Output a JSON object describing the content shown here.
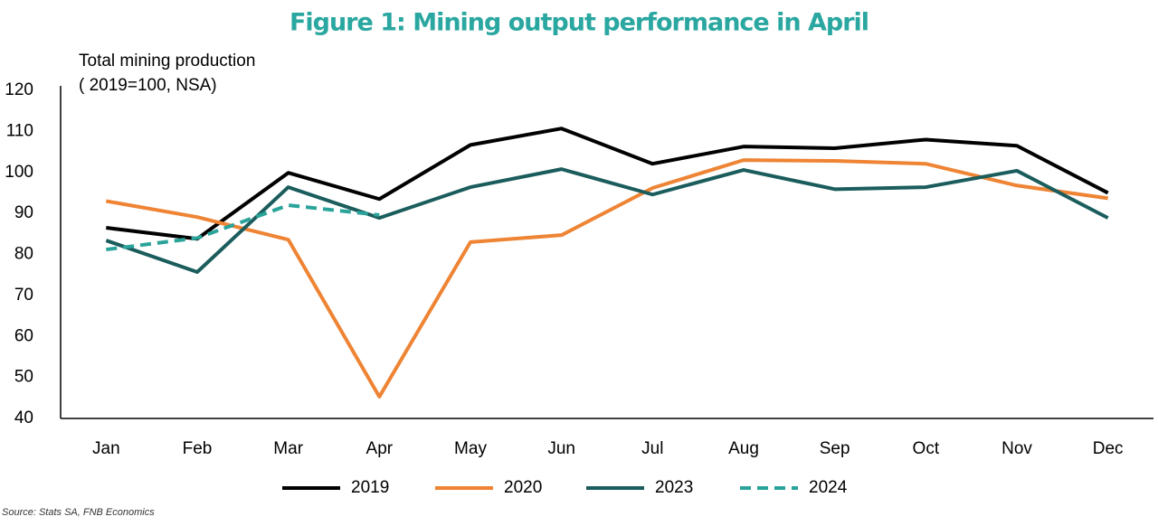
{
  "chart_data": {
    "type": "line",
    "title": "Figure 1: Mining output performance in April",
    "ylabel": [
      "Total mining production",
      "( 2019=100, NSA)"
    ],
    "source": "Source: Stats SA, FNB Economics",
    "categories": [
      "Jan",
      "Feb",
      "Mar",
      "Apr",
      "May",
      "Jun",
      "Jul",
      "Aug",
      "Sep",
      "Oct",
      "Nov",
      "Dec"
    ],
    "series": [
      {
        "name": "2019",
        "color": "#000000",
        "dash": false,
        "values": [
          86.5,
          83.8,
          99.9,
          93.5,
          106.7,
          110.7,
          102.1,
          106.3,
          105.9,
          108,
          106.5,
          95
        ]
      },
      {
        "name": "2020",
        "color": "#ee8434",
        "dash": false,
        "values": [
          93,
          89.1,
          83.6,
          45.3,
          83,
          84.7,
          96.2,
          103,
          102.8,
          102.1,
          96.8,
          93.7
        ]
      },
      {
        "name": "2023",
        "color": "#1b5c5c",
        "dash": false,
        "values": [
          83.4,
          75.7,
          96.4,
          88.9,
          96.4,
          100.8,
          94.6,
          100.6,
          95.9,
          96.4,
          100.4,
          88.9
        ]
      },
      {
        "name": "2024",
        "color": "#2aa39a",
        "dash": true,
        "values": [
          81.2,
          84,
          92,
          89.6,
          null,
          null,
          null,
          null,
          null,
          null,
          null,
          null
        ]
      }
    ],
    "ylim": [
      40,
      120
    ],
    "yticks": [
      40,
      50,
      60,
      70,
      80,
      90,
      100,
      110,
      120
    ],
    "grid": false,
    "legend": "bottom"
  }
}
